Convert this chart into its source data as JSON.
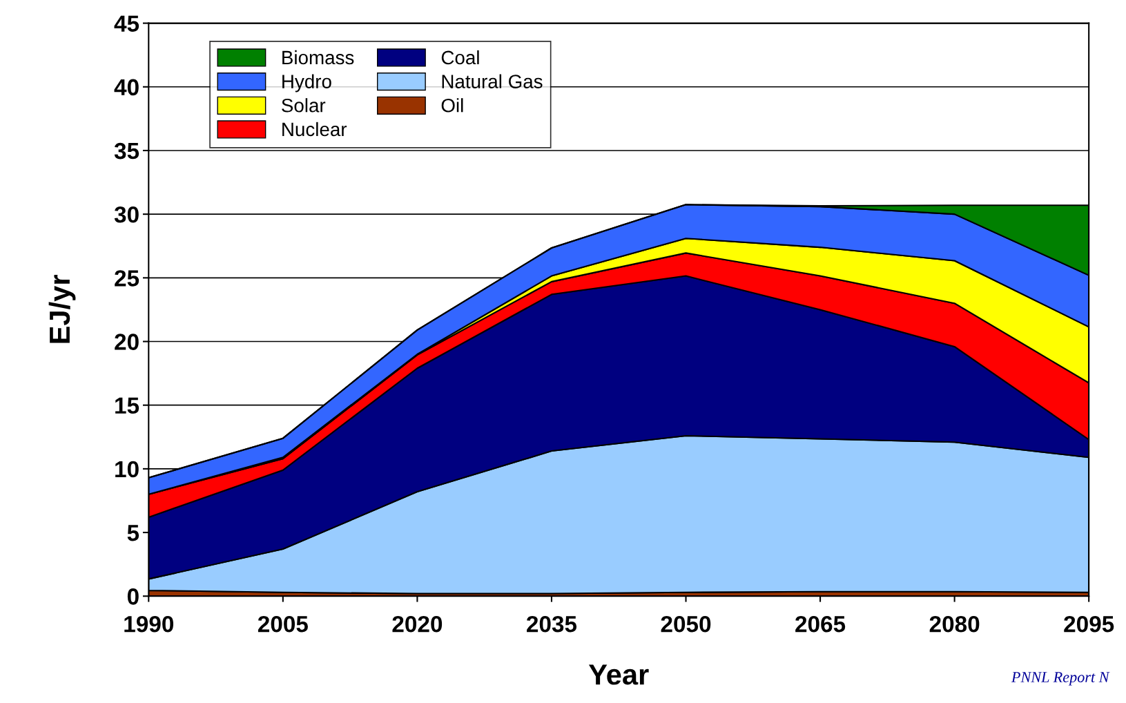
{
  "chart_data": {
    "type": "area",
    "stacked": true,
    "xlabel": "Year",
    "ylabel": "EJ/yr",
    "x": [
      1990,
      2005,
      2020,
      2035,
      2050,
      2065,
      2080,
      2095
    ],
    "xlim": [
      1990,
      2095
    ],
    "xticks": [
      1990,
      2005,
      2020,
      2035,
      2050,
      2065,
      2080,
      2095
    ],
    "ylim": [
      0,
      45
    ],
    "yticks": [
      0,
      5,
      10,
      15,
      20,
      25,
      30,
      35,
      40,
      45
    ],
    "grid": "y",
    "legend": "top left",
    "series": [
      {
        "name": "Oil",
        "color": "#993300",
        "values": [
          0.45,
          0.3,
          0.2,
          0.2,
          0.3,
          0.35,
          0.35,
          0.3
        ]
      },
      {
        "name": "Natural Gas",
        "color": "#99ccff",
        "values": [
          0.9,
          3.4,
          8.0,
          11.2,
          12.3,
          12.0,
          11.75,
          10.6
        ]
      },
      {
        "name": "Coal",
        "color": "#000080",
        "values": [
          4.85,
          6.2,
          9.7,
          12.3,
          12.55,
          10.15,
          7.5,
          1.4
        ]
      },
      {
        "name": "Nuclear",
        "color": "#ff0000",
        "values": [
          1.8,
          0.9,
          1.05,
          1.0,
          1.8,
          2.65,
          3.4,
          4.45
        ]
      },
      {
        "name": "Solar",
        "color": "#ffff00",
        "values": [
          0,
          0.1,
          0.05,
          0.45,
          1.15,
          2.25,
          3.35,
          4.4
        ]
      },
      {
        "name": "Hydro",
        "color": "#3366ff",
        "values": [
          1.3,
          1.5,
          1.9,
          2.2,
          2.65,
          3.2,
          3.65,
          4.05
        ]
      },
      {
        "name": "Biomass",
        "color": "#008000",
        "values": [
          0,
          0,
          0,
          0,
          0,
          0.05,
          0.7,
          5.5
        ]
      }
    ],
    "annotations": [
      "PNNL Report N"
    ]
  }
}
